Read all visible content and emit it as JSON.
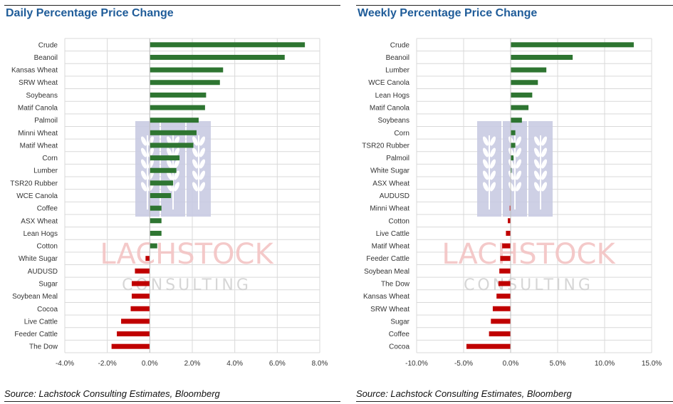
{
  "source_text": "Source: Lachstock Consulting Estimates, Bloomberg",
  "watermark": {
    "name": "LACHSTOCK",
    "tagline": "CONSULTING"
  },
  "colors": {
    "positive": "#2e7531",
    "negative": "#c00000",
    "title": "#1f5c99",
    "grid": "#d9d9d9",
    "watermark_red": "#f3c4c4",
    "watermark_blue": "#c9cbe3"
  },
  "chart_data": [
    {
      "type": "bar",
      "orientation": "horizontal",
      "title": "Daily Percentage Price Change",
      "categories": [
        "Crude",
        "Beanoil",
        "Kansas Wheat",
        "SRW Wheat",
        "Soybeans",
        "Matif Canola",
        "Palmoil",
        "Minni Wheat",
        "Matif Wheat",
        "Corn",
        "Lumber",
        "TSR20 Rubber",
        "WCE Canola",
        "Coffee",
        "ASX Wheat",
        "Lean Hogs",
        "Cotton",
        "White Sugar",
        "AUDUSD",
        "Sugar",
        "Soybean Meal",
        "Cocoa",
        "Live Cattle",
        "Feeder Cattle",
        "The Dow"
      ],
      "values": [
        7.3,
        6.35,
        3.45,
        3.3,
        2.65,
        2.6,
        2.3,
        2.2,
        2.05,
        1.4,
        1.25,
        1.1,
        1.0,
        0.55,
        0.55,
        0.55,
        0.35,
        -0.2,
        -0.7,
        -0.85,
        -0.85,
        -0.9,
        -1.35,
        -1.55,
        -1.8
      ],
      "xlim": [
        -4,
        8
      ],
      "ticks": [
        -4,
        -2,
        0,
        2,
        4,
        6,
        8
      ],
      "tick_labels": [
        "-4.0%",
        "-2.0%",
        "0.0%",
        "2.0%",
        "4.0%",
        "6.0%",
        "8.0%"
      ],
      "grid": true,
      "xlabel": "",
      "ylabel": ""
    },
    {
      "type": "bar",
      "orientation": "horizontal",
      "title": "Weekly Percentage Price Change",
      "categories": [
        "Crude",
        "Beanoil",
        "Lumber",
        "WCE Canola",
        "Lean Hogs",
        "Matif Canola",
        "Soybeans",
        "Corn",
        "TSR20 Rubber",
        "Palmoil",
        "White Sugar",
        "ASX Wheat",
        "AUDUSD",
        "Minni Wheat",
        "Cotton",
        "Live Cattle",
        "Matif Wheat",
        "Feeder Cattle",
        "Soybean Meal",
        "The Dow",
        "Kansas Wheat",
        "SRW Wheat",
        "Sugar",
        "Coffee",
        "Cocoa"
      ],
      "values": [
        13.1,
        6.6,
        3.8,
        2.9,
        2.3,
        1.9,
        1.2,
        0.5,
        0.5,
        0.3,
        0.1,
        0.0,
        0.0,
        -0.1,
        -0.3,
        -0.5,
        -0.9,
        -1.1,
        -1.2,
        -1.3,
        -1.5,
        -1.9,
        -2.1,
        -2.3,
        -4.7
      ],
      "xlim": [
        -10,
        15
      ],
      "ticks": [
        -10,
        -5,
        0,
        5,
        10,
        15
      ],
      "tick_labels": [
        "-10.0%",
        "-5.0%",
        "0.0%",
        "5.0%",
        "10.0%",
        "15.0%"
      ],
      "grid": true,
      "xlabel": "",
      "ylabel": ""
    }
  ]
}
